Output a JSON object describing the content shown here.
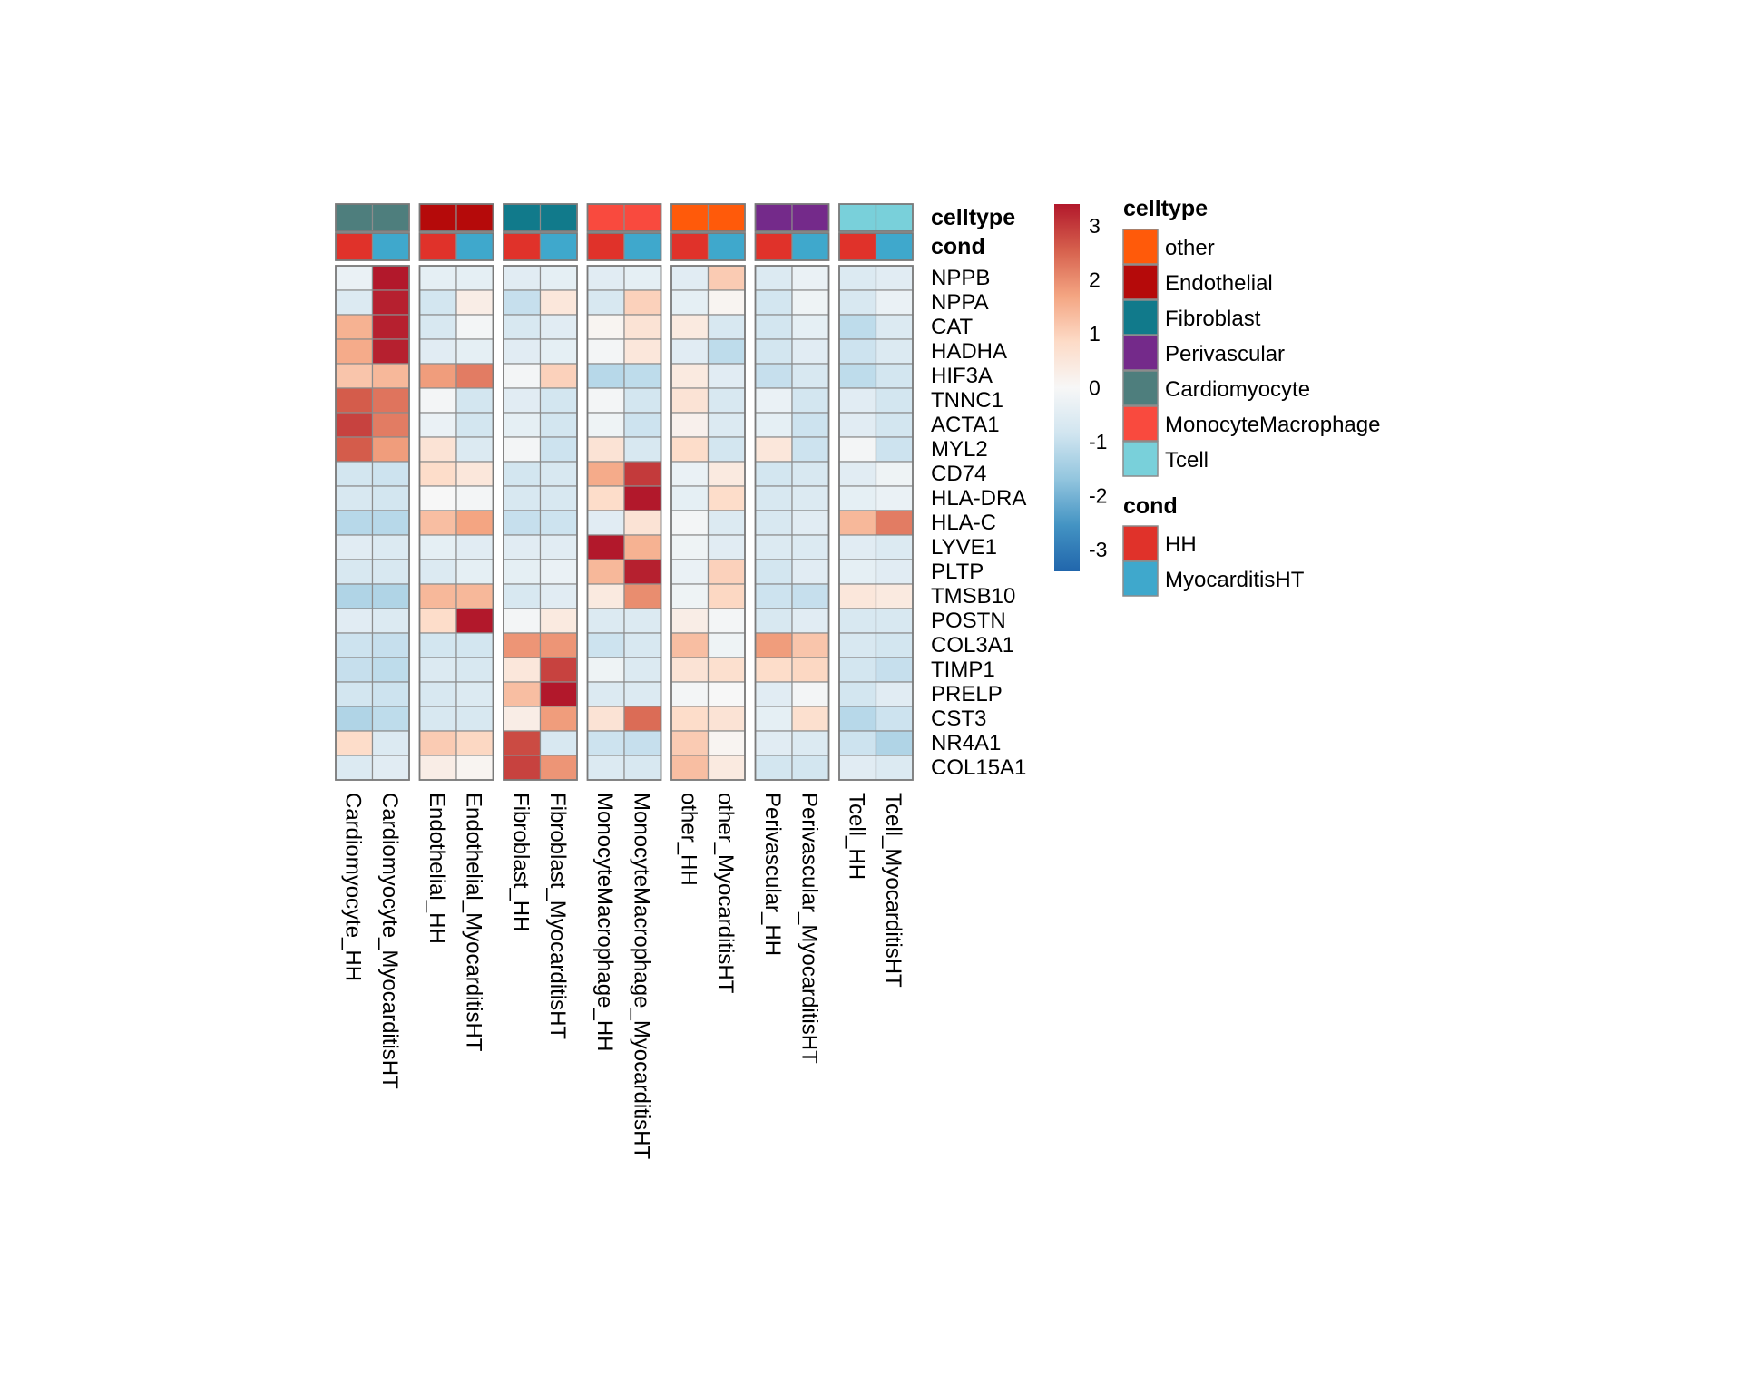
{
  "chart_data": {
    "type": "heatmap",
    "title": "",
    "columns": [
      "Cardiomyocyte_HH",
      "Cardiomyocyte_MyocarditisHT",
      "Endothelial_HH",
      "Endothelial_MyocarditisHT",
      "Fibroblast_HH",
      "Fibroblast_MyocarditisHT",
      "MonocyteMacrophage_HH",
      "MonocyteMacrophage_MyocarditisHT",
      "other_HH",
      "other_MyocarditisHT",
      "Perivascular_HH",
      "Perivascular_MyocarditisHT",
      "Tcell_HH",
      "Tcell_MyocarditisHT"
    ],
    "column_groups": [
      "Cardiomyocyte",
      "Endothelial",
      "Fibroblast",
      "MonocyteMacrophage",
      "other",
      "Perivascular",
      "Tcell"
    ],
    "rows": [
      "NPPB",
      "NPPA",
      "CAT",
      "HADHA",
      "HIF3A",
      "TNNC1",
      "ACTA1",
      "MYL2",
      "CD74",
      "HLA-DRA",
      "HLA-C",
      "LYVE1",
      "PLTP",
      "TMSB10",
      "POSTN",
      "COL3A1",
      "TIMP1",
      "PRELP",
      "CST3",
      "NR4A1",
      "COL15A1"
    ],
    "values": [
      [
        -0.3,
        3.4,
        -0.4,
        -0.4,
        -0.5,
        -0.4,
        -0.5,
        -0.4,
        -0.5,
        1.1,
        -0.6,
        -0.3,
        -0.6,
        -0.5
      ],
      [
        -0.6,
        3.3,
        -0.8,
        0.3,
        -1.0,
        0.5,
        -0.7,
        1.0,
        -0.4,
        0.1,
        -0.8,
        -0.2,
        -0.7,
        -0.3
      ],
      [
        1.5,
        3.3,
        -0.7,
        -0.1,
        -0.7,
        -0.5,
        0.1,
        0.6,
        0.4,
        -0.7,
        -0.8,
        -0.4,
        -1.1,
        -0.6
      ],
      [
        1.6,
        3.3,
        -0.5,
        -0.4,
        -0.5,
        -0.4,
        -0.1,
        0.5,
        -0.5,
        -1.1,
        -0.8,
        -0.5,
        -0.9,
        -0.6
      ],
      [
        1.2,
        1.4,
        1.8,
        2.2,
        -0.1,
        1.0,
        -1.2,
        -1.1,
        0.4,
        -0.5,
        -1.0,
        -0.7,
        -1.1,
        -0.8
      ],
      [
        2.6,
        2.3,
        -0.1,
        -0.8,
        -0.5,
        -0.8,
        -0.1,
        -0.8,
        0.6,
        -0.7,
        -0.3,
        -0.8,
        -0.5,
        -0.8
      ],
      [
        2.9,
        2.2,
        -0.3,
        -0.8,
        -0.4,
        -0.8,
        -0.2,
        -0.9,
        0.2,
        -0.6,
        -0.4,
        -0.9,
        -0.5,
        -0.8
      ],
      [
        2.6,
        1.8,
        0.6,
        -0.6,
        -0.1,
        -0.9,
        0.6,
        -0.7,
        0.8,
        -0.8,
        0.5,
        -0.9,
        -0.1,
        -0.9
      ],
      [
        -0.8,
        -0.9,
        0.8,
        0.5,
        -0.8,
        -0.7,
        1.6,
        3.0,
        -0.3,
        0.4,
        -0.8,
        -0.7,
        -0.5,
        -0.2
      ],
      [
        -0.7,
        -0.8,
        0.0,
        -0.1,
        -0.7,
        -0.7,
        0.8,
        3.4,
        -0.4,
        0.8,
        -0.7,
        -0.6,
        -0.4,
        -0.3
      ],
      [
        -1.2,
        -1.2,
        1.3,
        1.7,
        -1.0,
        -0.9,
        -0.5,
        0.6,
        -0.1,
        -0.6,
        -0.7,
        -0.5,
        1.4,
        2.2
      ],
      [
        -0.5,
        -0.6,
        -0.4,
        -0.5,
        -0.5,
        -0.5,
        3.4,
        1.5,
        -0.2,
        -0.5,
        -0.6,
        -0.6,
        -0.5,
        -0.6
      ],
      [
        -0.7,
        -0.7,
        -0.6,
        -0.4,
        -0.4,
        -0.3,
        1.4,
        3.3,
        -0.3,
        1.0,
        -0.8,
        -0.5,
        -0.4,
        -0.5
      ],
      [
        -1.3,
        -1.3,
        1.4,
        1.4,
        -0.7,
        -0.5,
        0.4,
        2.0,
        -0.2,
        0.9,
        -0.9,
        -1.0,
        0.5,
        0.4
      ],
      [
        -0.5,
        -0.6,
        0.8,
        3.4,
        -0.1,
        0.4,
        -0.6,
        -0.6,
        0.3,
        -0.1,
        -0.7,
        -0.5,
        -0.7,
        -0.7
      ],
      [
        -0.9,
        -1.0,
        -0.8,
        -0.8,
        1.9,
        1.9,
        -0.9,
        -0.7,
        1.3,
        -0.2,
        1.8,
        1.2,
        -0.7,
        -0.8
      ],
      [
        -1.0,
        -1.1,
        -0.6,
        -0.7,
        0.5,
        2.9,
        -0.2,
        -0.6,
        0.6,
        0.7,
        0.8,
        0.9,
        -0.8,
        -1.0
      ],
      [
        -0.8,
        -0.9,
        -0.7,
        -0.6,
        1.3,
        3.4,
        -0.6,
        -0.6,
        -0.1,
        0.0,
        -0.5,
        -0.1,
        -0.8,
        -0.5
      ],
      [
        -1.3,
        -1.1,
        -0.7,
        -0.7,
        0.3,
        1.8,
        0.6,
        2.4,
        0.8,
        0.6,
        -0.4,
        0.7,
        -1.2,
        -0.9
      ],
      [
        0.8,
        -0.6,
        1.1,
        0.9,
        2.8,
        -0.7,
        -0.9,
        -1.0,
        1.1,
        0.1,
        -0.5,
        -0.6,
        -0.9,
        -1.3
      ],
      [
        -0.6,
        -0.5,
        0.3,
        0.1,
        2.9,
        1.9,
        -0.6,
        -0.7,
        1.3,
        0.4,
        -0.8,
        -0.8,
        -0.5,
        -0.6
      ]
    ],
    "annotations": {
      "celltype": [
        "Cardiomyocyte",
        "Cardiomyocyte",
        "Endothelial",
        "Endothelial",
        "Fibroblast",
        "Fibroblast",
        "MonocyteMacrophage",
        "MonocyteMacrophage",
        "other",
        "other",
        "Perivascular",
        "Perivascular",
        "Tcell",
        "Tcell"
      ],
      "cond": [
        "HH",
        "MyocarditisHT",
        "HH",
        "MyocarditisHT",
        "HH",
        "MyocarditisHT",
        "HH",
        "MyocarditisHT",
        "HH",
        "MyocarditisHT",
        "HH",
        "MyocarditisHT",
        "HH",
        "MyocarditisHT"
      ]
    },
    "annotation_labels": [
      "celltype",
      "cond"
    ],
    "color_scale": {
      "min": -3.4,
      "max": 3.4,
      "colors": [
        "#2166ac",
        "#4393c3",
        "#92c5de",
        "#d1e5f0",
        "#f7f7f7",
        "#fddbc7",
        "#f4a582",
        "#d6604d",
        "#b2182b"
      ],
      "ticks": [
        3,
        2,
        1,
        0,
        -1,
        -2,
        -3
      ]
    },
    "legends": {
      "celltype": {
        "title": "celltype",
        "items": [
          {
            "label": "other",
            "color": "#FF5A0A"
          },
          {
            "label": "Endothelial",
            "color": "#B50A0A"
          },
          {
            "label": "Fibroblast",
            "color": "#117A8B"
          },
          {
            "label": "Perivascular",
            "color": "#742A8A"
          },
          {
            "label": "Cardiomyocyte",
            "color": "#4E7E7D"
          },
          {
            "label": "MonocyteMacrophage",
            "color": "#F94A3E"
          },
          {
            "label": "Tcell",
            "color": "#79D0DA"
          }
        ]
      },
      "cond": {
        "title": "cond",
        "items": [
          {
            "label": "HH",
            "color": "#E0322A"
          },
          {
            "label": "MyocarditisHT",
            "color": "#3FA8CC"
          }
        ]
      }
    }
  }
}
